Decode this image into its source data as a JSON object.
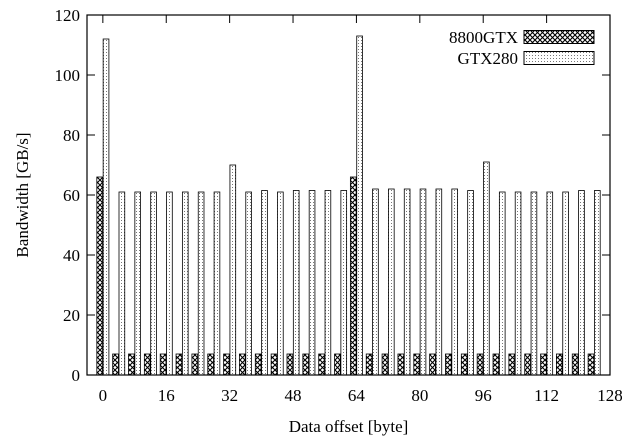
{
  "chart_data": {
    "type": "bar",
    "xlabel": "Data offset [byte]",
    "ylabel": "Bandwidth [GB/s]",
    "xlim": [
      -4,
      128
    ],
    "ylim": [
      0,
      120
    ],
    "x_ticks": [
      0,
      16,
      32,
      48,
      64,
      80,
      96,
      112,
      128
    ],
    "y_ticks": [
      0,
      20,
      40,
      60,
      80,
      100,
      120
    ],
    "legend_position": "top-right",
    "grid": false,
    "x": [
      0,
      4,
      8,
      12,
      16,
      20,
      24,
      28,
      32,
      36,
      40,
      44,
      48,
      52,
      56,
      60,
      64,
      68,
      72,
      76,
      80,
      84,
      88,
      92,
      96,
      100,
      104,
      108,
      112,
      116,
      120,
      124
    ],
    "series": [
      {
        "name": "8800GTX",
        "color": "#000000",
        "values": [
          66,
          7,
          7,
          7,
          7,
          7,
          7,
          7,
          7,
          7,
          7,
          7,
          7,
          7,
          7,
          7,
          66,
          7,
          7,
          7,
          7,
          7,
          7,
          7,
          7,
          7,
          7,
          7,
          7,
          7,
          7,
          7
        ]
      },
      {
        "name": "GTX280",
        "color": "#000000",
        "values": [
          112,
          61,
          61,
          61,
          61,
          61,
          61,
          61,
          70,
          61,
          61.5,
          61,
          61.5,
          61.5,
          61.5,
          61.5,
          113,
          62,
          62,
          62,
          62,
          62,
          62,
          61.5,
          71,
          61,
          61,
          61,
          61,
          61,
          61.5,
          61.5
        ]
      }
    ]
  }
}
